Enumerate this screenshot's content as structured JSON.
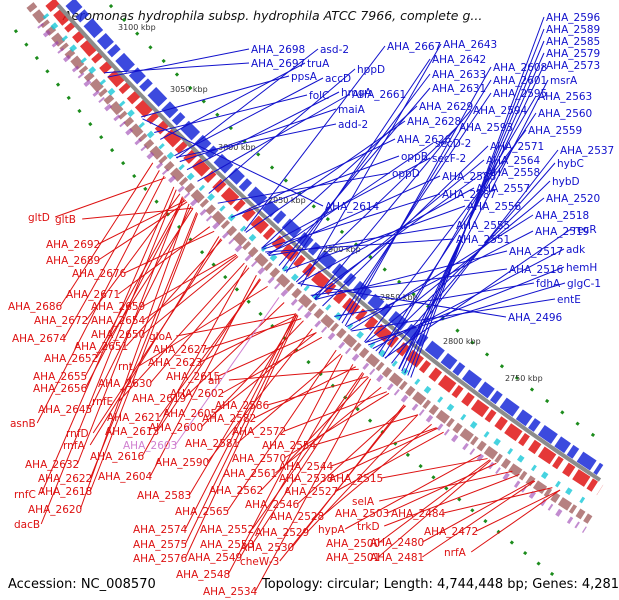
{
  "title": "Aeromonas hydrophila subsp. hydrophila ATCC 7966, complete g...",
  "footer": {
    "accession": "Accession: NC_008570",
    "summary": "Topology: circular; Length: 4,744,448 bp; Genes: 4,281"
  },
  "colors": {
    "forward": "#dd1111",
    "reverse": "#1111cc",
    "highlight": "#d080d0",
    "backbone": "#8c8c8c"
  },
  "position_ticks": [
    "3100 kbp",
    "3050 kbp",
    "3000 kbp",
    "2950 kbp",
    "2900 kbp",
    "2850 kbp",
    "2800 kbp",
    "2750 kbp"
  ],
  "reverse_strand_labels": [
    "AHA_2596",
    "AHA_2589",
    "AHA_2585",
    "AHA_2579",
    "AHA_2573",
    "AHA_2698",
    "asd-2",
    "AHA_2667",
    "AHA_2643",
    "AHA_2697",
    "truA",
    "hppD",
    "AHA_2642",
    "AHA_2608",
    "ppsA",
    "accD",
    "AHA_2633",
    "AHA_2601",
    "msrA",
    "hmgA",
    "AHA_2631",
    "AHA_2595",
    "AHA_2563",
    "folC",
    "AHA_2661",
    "AHA_2629",
    "AHA_2594",
    "AHA_2560",
    "maiA",
    "AHA_2628",
    "AHA_2593",
    "AHA_2559",
    "add-2",
    "AHA_2626",
    "secD-2",
    "AHA_2571",
    "AHA_2537",
    "oppB",
    "secF-2",
    "AHA_2564",
    "hybC",
    "oppD",
    "AHA_2588",
    "AHA_2558",
    "hybD",
    "AHA_2587",
    "AHA_2557",
    "AHA_2520",
    "AHA_2614",
    "AHA_2556",
    "AHA_2518",
    "AHA_2555",
    "AHA_2519",
    "recR",
    "AHA_2551",
    "AHA_2517",
    "adk",
    "hemH",
    "AHA_2516",
    "fdhA",
    "glgC-1",
    "entE",
    "AHA_2496"
  ],
  "forward_strand_labels": [
    "gltD",
    "gltB",
    "AHA_2692",
    "AHA_2689",
    "AHA_2676",
    "AHA_2671",
    "AHA_2686",
    "AHA_2659",
    "AHA_2672",
    "AHA_2654",
    "AHA_2650",
    "AHA_2674",
    "gloA",
    "AHA_2651",
    "AHA_2627",
    "AHA_2652",
    "AHA_2623",
    "rnt",
    "AHA_2655",
    "AHA_2615",
    "alr",
    "AHA_2630",
    "AHA_2656",
    "AHA_2602",
    "rnfE",
    "AHA_2619",
    "AHA_2645",
    "AHA_2586",
    "AHA_2621",
    "AHA_2605",
    "asnB",
    "rnfD",
    "AHA_2582",
    "AHA_2613",
    "AHA_2600",
    "rnfA",
    "AHA_2603",
    "AHA_2572",
    "AHA_2581",
    "AHA_2554",
    "AHA_2616",
    "AHA_2632",
    "AHA_2590",
    "AHA_2570",
    "AHA_2622",
    "AHA_2604",
    "AHA_2561",
    "AHA_2544",
    "AHA_2618",
    "AHA_2538",
    "rnfC",
    "AHA_2562",
    "AHA_2515",
    "AHA_2527",
    "AHA_2583",
    "AHA_2620",
    "AHA_2546",
    "AHA_2565",
    "selA",
    "AHA_2503",
    "AHA_2484",
    "dacB",
    "AHA_2528",
    "trkD",
    "hypA",
    "AHA_2552",
    "AHA_2574",
    "AHA_2529",
    "AHA_2500",
    "AHA_2480",
    "AHA_2472",
    "AHA_2575",
    "AHA_2553",
    "AHA_2530",
    "AHA_2481",
    "nrfA",
    "AHA_2576",
    "AHA_2549",
    "cheW-3",
    "AHA_2501",
    "AHA_2548",
    "AHA_2534"
  ]
}
